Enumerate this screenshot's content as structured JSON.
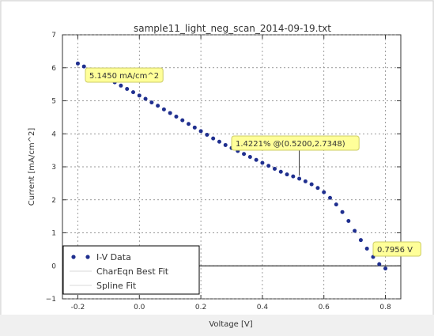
{
  "window": {
    "title": "sample11_light_neg_scan_2014-09-19.txt"
  },
  "chart_data": {
    "type": "line",
    "title": "sample11_light_neg_scan_2014-09-19.txt",
    "xlabel": "Voltage [V]",
    "ylabel": "Current [mA/cm^2]",
    "xlim": [
      -0.25,
      0.85
    ],
    "ylim": [
      -1,
      7
    ],
    "x_ticks": [
      -0.2,
      0.0,
      0.2,
      0.4,
      0.6,
      0.8
    ],
    "x_tick_labels": [
      "-0.2",
      "0.0",
      "0.2",
      "0.4",
      "0.6",
      "0.8"
    ],
    "y_ticks": [
      -1,
      0,
      1,
      2,
      3,
      4,
      5,
      6,
      7
    ],
    "y_tick_labels": [
      "−1",
      "0",
      "1",
      "2",
      "3",
      "4",
      "5",
      "6",
      "7"
    ],
    "grid": true,
    "legend_position": "bottom-left",
    "series": [
      {
        "name": "I-V Data",
        "style": "dots",
        "color": "#1f2f8f",
        "x": [
          -0.2,
          -0.18,
          -0.16,
          -0.14,
          -0.12,
          -0.1,
          -0.08,
          -0.06,
          -0.04,
          -0.02,
          0.0,
          0.02,
          0.04,
          0.06,
          0.08,
          0.1,
          0.12,
          0.14,
          0.16,
          0.18,
          0.2,
          0.22,
          0.24,
          0.26,
          0.28,
          0.3,
          0.32,
          0.34,
          0.36,
          0.38,
          0.4,
          0.42,
          0.44,
          0.46,
          0.48,
          0.5,
          0.52,
          0.54,
          0.56,
          0.58,
          0.6,
          0.62,
          0.64,
          0.66,
          0.68,
          0.7,
          0.72,
          0.74,
          0.76,
          0.78,
          0.8
        ],
        "y": [
          6.13,
          6.04,
          5.95,
          5.85,
          5.76,
          5.66,
          5.56,
          5.46,
          5.36,
          5.26,
          5.16,
          5.06,
          4.95,
          4.85,
          4.74,
          4.63,
          4.52,
          4.41,
          4.3,
          4.19,
          4.08,
          3.97,
          3.86,
          3.76,
          3.66,
          3.57,
          3.48,
          3.39,
          3.3,
          3.21,
          3.12,
          3.03,
          2.94,
          2.85,
          2.77,
          2.71,
          2.64,
          2.56,
          2.47,
          2.36,
          2.23,
          2.06,
          1.86,
          1.63,
          1.36,
          1.06,
          0.78,
          0.52,
          0.27,
          0.05,
          -0.08
        ]
      },
      {
        "name": "CharEqn Best Fit",
        "style": "line",
        "color": "#d8d8d8"
      },
      {
        "name": "Spline Fit",
        "style": "line",
        "color": "#d8d8d8"
      }
    ],
    "hline": {
      "y": 0,
      "color": "#000000"
    },
    "annotations": [
      {
        "text": "5.1450 mA/cm^2",
        "x": 0.0,
        "y": 5.16,
        "anchor_x": 0.0,
        "anchor_y": 5.16
      },
      {
        "text": "1.4221% @(0.5200,2.7348)",
        "x": 0.52,
        "y": 2.73,
        "anchor_x": 0.52,
        "anchor_y": 2.73
      },
      {
        "text": "0.7956 V",
        "x": 0.7956,
        "y": 0.0,
        "anchor_x": 0.7956,
        "anchor_y": 0.0
      }
    ],
    "legend": [
      "I-V Data",
      "CharEqn Best Fit",
      "Spline Fit"
    ]
  }
}
